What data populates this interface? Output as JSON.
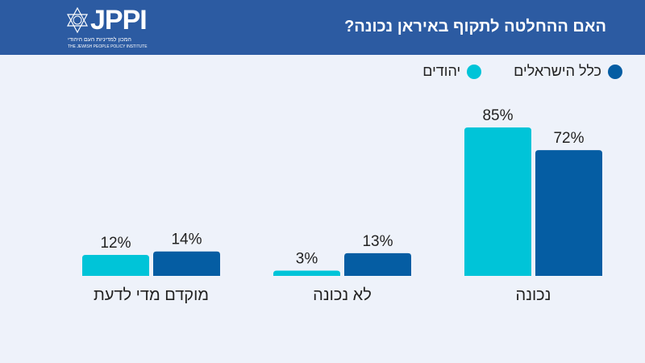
{
  "header": {
    "title": "האם ההחלטה לתקוף באיראן נכונה?"
  },
  "logo": {
    "name": "JPPI",
    "hebrew": "המכון למדיניות העם היהודי",
    "english": "THE JEWISH PEOPLE POLICY INSTITUTE"
  },
  "chart_data": {
    "type": "bar",
    "title": "האם ההחלטה לתקוף באיראן נכונה?",
    "categories": [
      "נכונה",
      "לא נכונה",
      "מוקדם מדי לדעת"
    ],
    "series": [
      {
        "name": "יהודים",
        "color": "#00c4d8",
        "values": [
          85,
          3,
          12
        ]
      },
      {
        "name": "כלל הישראלים",
        "color": "#055da3",
        "values": [
          72,
          13,
          14
        ]
      }
    ],
    "value_suffix": "%",
    "ylim": [
      0,
      85
    ],
    "grid": false,
    "legend": "top-right"
  }
}
